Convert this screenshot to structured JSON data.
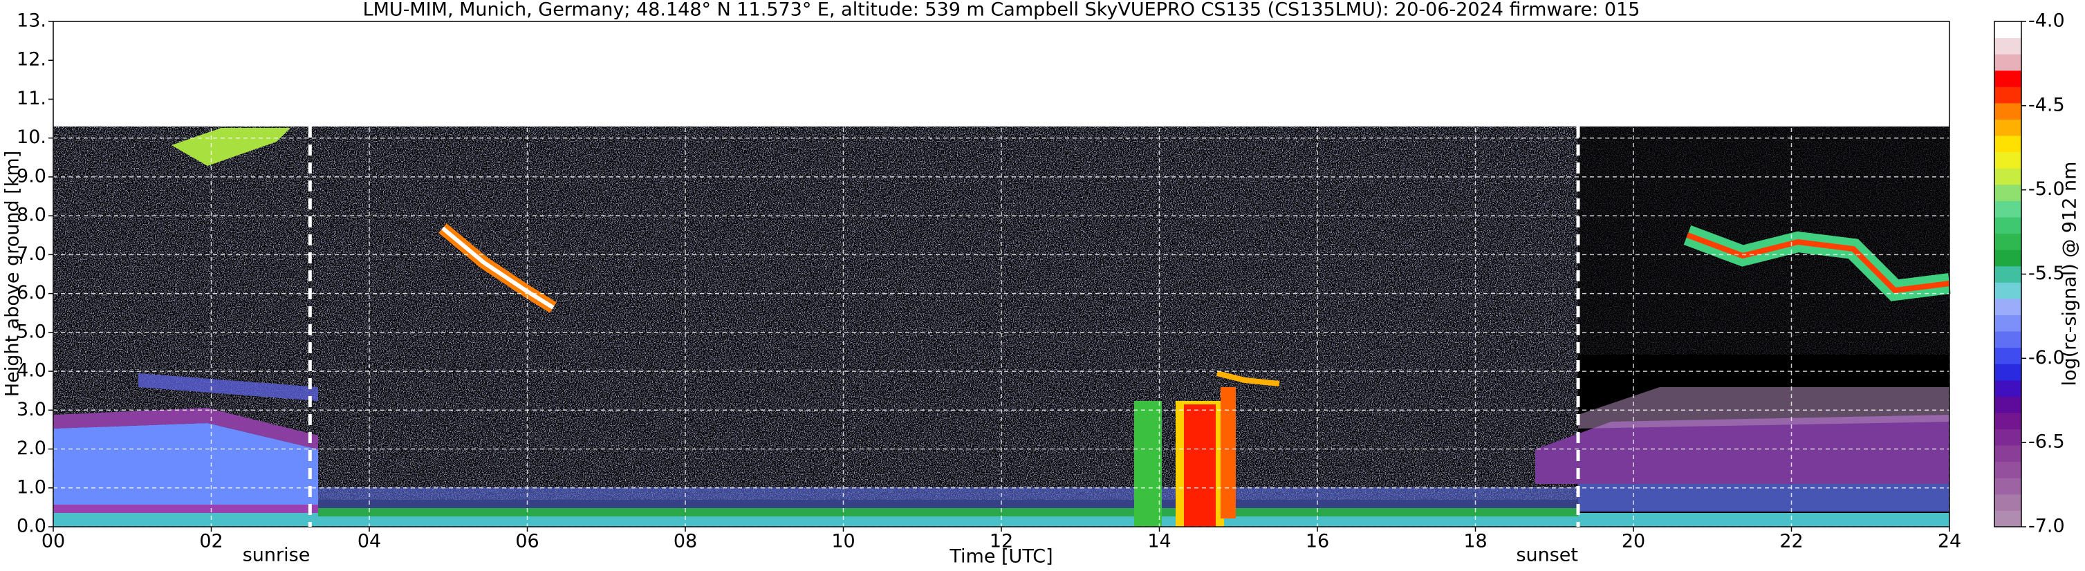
{
  "chart_data": {
    "type": "heatmap",
    "title": "LMU-MIM, Munich, Germany; 48.148° N 11.573° E, altitude: 539 m    Campbell SkyVUEPRO CS135 (CS135LMU): 20-06-2024    firmware: 015",
    "x_label": "Time [UTC]",
    "y_label": "Height above ground [km]",
    "xlim": [
      0,
      24
    ],
    "xticks": [
      {
        "value": 0,
        "label": "00"
      },
      {
        "value": 2,
        "label": "02"
      },
      {
        "value": 4,
        "label": "04"
      },
      {
        "value": 6,
        "label": "06"
      },
      {
        "value": 8,
        "label": "08"
      },
      10,
      12,
      14,
      16,
      18,
      20,
      22,
      24
    ],
    "ylim": [
      0,
      13
    ],
    "yticks": [
      {
        "value": 0,
        "label": "0.0"
      },
      {
        "value": 1,
        "label": "1.0"
      },
      {
        "value": 2,
        "label": "2.0"
      },
      {
        "value": 3,
        "label": "3.0"
      },
      {
        "value": 4,
        "label": "4.0"
      },
      {
        "value": 5,
        "label": "5.0"
      },
      {
        "value": 6,
        "label": "6.0"
      },
      {
        "value": 7,
        "label": "7.0"
      },
      {
        "value": 8,
        "label": "8.0"
      },
      {
        "value": 9,
        "label": "9.0"
      },
      {
        "value": 10,
        "label": "10."
      },
      {
        "value": 11,
        "label": "11."
      },
      {
        "value": 12,
        "label": "12."
      },
      {
        "value": 13,
        "label": "13."
      }
    ],
    "grid": true,
    "annotations": [
      {
        "label": "sunrise",
        "x": 3.25
      },
      {
        "label": "sunset",
        "x": 19.3
      }
    ],
    "colorbar": {
      "label": "log(rc-signal) @ 912 nm",
      "lim": [
        -7,
        -4
      ],
      "ticks": [
        {
          "value": -4,
          "label": "-4.0"
        },
        {
          "value": -4.5,
          "label": "-4.5"
        },
        {
          "value": -5,
          "label": "-5.0"
        },
        {
          "value": -5.5,
          "label": "-5.5"
        },
        {
          "value": -6,
          "label": "-6.0"
        },
        {
          "value": -6.5,
          "label": "-6.5"
        },
        {
          "value": -7,
          "label": "-7.0"
        }
      ],
      "colors": [
        "#b08cb0",
        "#a87aa8",
        "#9e63a2",
        "#94509c",
        "#8a3e98",
        "#7f2a94",
        "#73168f",
        "#5e0a9a",
        "#3f0fc0",
        "#2a2ae0",
        "#3f4cf0",
        "#5f70f5",
        "#7d8ff8",
        "#9aacfa",
        "#6fd0d8",
        "#40c0a0",
        "#20a840",
        "#30b850",
        "#40c870",
        "#60d890",
        "#90e070",
        "#c8ec40",
        "#f0f020",
        "#ffe000",
        "#ffb000",
        "#ff8000",
        "#ff3000",
        "#ff0000",
        "#e8b0b8",
        "#f0d8dc",
        "#ffffff"
      ]
    }
  }
}
